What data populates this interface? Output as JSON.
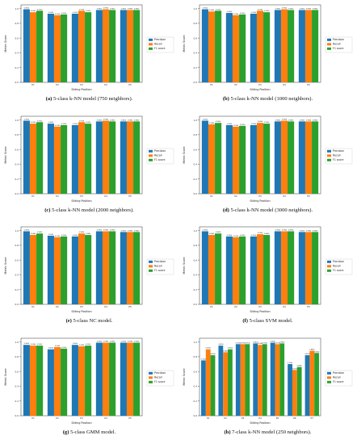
{
  "colors": {
    "precision": "#1f77b4",
    "recall": "#ff7f0e",
    "f1": "#2ca02c"
  },
  "legend_labels": [
    "Precision",
    "Recall",
    "F1 score"
  ],
  "ylabel": "Metric Score",
  "xlabel": "Sitting Position",
  "chart_data": [
    {
      "type": "bar",
      "caption_letter": "(a)",
      "caption_text": " 5-class k-NN model (750 neighbors).",
      "categories": [
        "P1",
        "P2",
        "P3",
        "P4",
        "P5"
      ],
      "ylabel": "Metric Score",
      "xlabel": "Sitting Position",
      "ylim": [
        0,
        1.05
      ],
      "legend": "right",
      "series": [
        {
          "name": "Precision",
          "values": [
            0.99,
            0.93,
            0.93,
            0.98,
            0.98
          ]
        },
        {
          "name": "Recall",
          "values": [
            0.95,
            0.91,
            0.97,
            0.99,
            0.98
          ]
        },
        {
          "name": "F1 score",
          "values": [
            0.97,
            0.92,
            0.95,
            0.98,
            0.98
          ]
        }
      ]
    },
    {
      "type": "bar",
      "caption_letter": "(b)",
      "caption_text": " 5-class k-NN model (1000 neighbors).",
      "categories": [
        "P1",
        "P2",
        "P3",
        "P4",
        "P5"
      ],
      "ylabel": "Metric Score",
      "xlabel": "Sitting Position",
      "ylim": [
        0,
        1.05
      ],
      "legend": "right",
      "series": [
        {
          "name": "Precision",
          "values": [
            0.99,
            0.94,
            0.93,
            0.98,
            0.98
          ]
        },
        {
          "name": "Recall",
          "values": [
            0.96,
            0.91,
            0.97,
            0.99,
            0.98
          ]
        },
        {
          "name": "F1 score",
          "values": [
            0.97,
            0.92,
            0.95,
            0.98,
            0.98
          ]
        }
      ]
    },
    {
      "type": "bar",
      "caption_letter": "(c)",
      "caption_text": " 5-class k-NN model (2000 neighbors).",
      "categories": [
        "P1",
        "P2",
        "P3",
        "P4",
        "P5"
      ],
      "ylabel": "Metric Score",
      "xlabel": "Sitting Position",
      "ylim": [
        0,
        1.05
      ],
      "legend": "right",
      "series": [
        {
          "name": "Precision",
          "values": [
            0.99,
            0.95,
            0.93,
            0.98,
            0.98
          ]
        },
        {
          "name": "Recall",
          "values": [
            0.95,
            0.91,
            0.97,
            0.99,
            0.98
          ]
        },
        {
          "name": "F1 score",
          "values": [
            0.97,
            0.93,
            0.95,
            0.98,
            0.98
          ]
        }
      ]
    },
    {
      "type": "bar",
      "caption_letter": "(d)",
      "caption_text": " 5-class k-NN model (3000 neighbors).",
      "categories": [
        "P1",
        "P2",
        "P3",
        "P4",
        "P5"
      ],
      "ylabel": "Metric Score",
      "xlabel": "Sitting Position",
      "ylim": [
        0,
        1.05
      ],
      "legend": "right",
      "series": [
        {
          "name": "Precision",
          "values": [
            0.99,
            0.93,
            0.93,
            0.98,
            0.98
          ]
        },
        {
          "name": "Recall",
          "values": [
            0.94,
            0.91,
            0.96,
            0.99,
            0.98
          ]
        },
        {
          "name": "F1 score",
          "values": [
            0.96,
            0.92,
            0.95,
            0.98,
            0.98
          ]
        }
      ]
    },
    {
      "type": "bar",
      "caption_letter": "(e)",
      "caption_text": " 5-class NC model.",
      "categories": [
        "P1",
        "P2",
        "P3",
        "P4",
        "P5"
      ],
      "ylabel": "Metric Score",
      "xlabel": "Sitting Position",
      "ylim": [
        0,
        1.05
      ],
      "legend": "right",
      "series": [
        {
          "name": "Precision",
          "values": [
            0.99,
            0.93,
            0.92,
            0.99,
            0.98
          ]
        },
        {
          "name": "Recall",
          "values": [
            0.94,
            0.91,
            0.96,
            0.99,
            0.98
          ]
        },
        {
          "name": "F1 score",
          "values": [
            0.96,
            0.92,
            0.94,
            0.99,
            0.98
          ]
        }
      ]
    },
    {
      "type": "bar",
      "caption_letter": "(f)",
      "caption_text": " 5-class SVM model.",
      "categories": [
        "P1",
        "P2",
        "P3",
        "P4",
        "P5"
      ],
      "ylabel": "Metric Score",
      "xlabel": "Sitting Position",
      "ylim": [
        0,
        1.05
      ],
      "legend": "right",
      "series": [
        {
          "name": "Precision",
          "values": [
            0.99,
            0.92,
            0.92,
            0.99,
            0.98
          ]
        },
        {
          "name": "Recall",
          "values": [
            0.94,
            0.91,
            0.95,
            0.99,
            0.98
          ]
        },
        {
          "name": "F1 score",
          "values": [
            0.96,
            0.92,
            0.94,
            0.99,
            0.98
          ]
        }
      ]
    },
    {
      "type": "bar",
      "caption_letter": "(g)",
      "caption_text": " 5-class GMM model.",
      "categories": [
        "P1",
        "P2",
        "P3",
        "P4",
        "P5"
      ],
      "ylabel": "Metric Score",
      "xlabel": "Sitting Position",
      "ylim": [
        0,
        1.05
      ],
      "legend": "right",
      "series": [
        {
          "name": "Precision",
          "values": [
            0.96,
            0.9,
            0.96,
            0.99,
            0.99
          ]
        },
        {
          "name": "Recall",
          "values": [
            0.95,
            0.93,
            0.94,
            0.99,
            0.99
          ]
        },
        {
          "name": "F1 score",
          "values": [
            0.95,
            0.91,
            0.95,
            0.99,
            0.99
          ]
        }
      ]
    },
    {
      "type": "bar",
      "caption_letter": "(h)",
      "caption_text": " 7-class k-NN model (250 neighbors).",
      "categories": [
        "P1",
        "P2",
        "P3",
        "P4",
        "P5",
        "P6",
        "P7"
      ],
      "ylabel": "Metric Score",
      "xlabel": "Sitting Position",
      "ylim": [
        0,
        1.05
      ],
      "legend": "right",
      "series": [
        {
          "name": "Precision",
          "values": [
            0.75,
            0.95,
            0.97,
            0.98,
            0.99,
            0.7,
            0.82
          ]
        },
        {
          "name": "Recall",
          "values": [
            0.9,
            0.86,
            0.97,
            0.96,
            0.97,
            0.62,
            0.88
          ]
        },
        {
          "name": "F1 score",
          "values": [
            0.82,
            0.9,
            0.97,
            0.97,
            0.98,
            0.66,
            0.85
          ]
        }
      ]
    }
  ]
}
